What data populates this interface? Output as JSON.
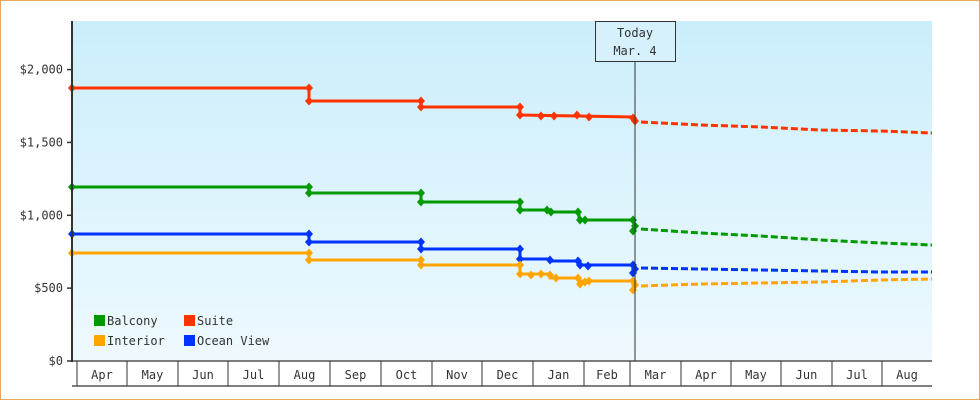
{
  "chart_data": {
    "type": "line",
    "title": "",
    "xlabel": "",
    "ylabel": "",
    "ylim": [
      0,
      2300
    ],
    "y_ticks": [
      {
        "value": 0,
        "label": "$0"
      },
      {
        "value": 500,
        "label": "$500"
      },
      {
        "value": 1000,
        "label": "$1,000"
      },
      {
        "value": 1500,
        "label": "$1,500"
      },
      {
        "value": 2000,
        "label": "$2,000"
      }
    ],
    "x_months": [
      "Apr",
      "May",
      "Jun",
      "Jul",
      "Aug",
      "Sep",
      "Oct",
      "Nov",
      "Dec",
      "Jan",
      "Feb",
      "Mar",
      "Apr",
      "May",
      "Jun",
      "Jul",
      "Aug"
    ],
    "today_marker": {
      "line1": "Today",
      "line2": "Mar. 4"
    },
    "grid": false,
    "legend_position": "bottom-left inside plot",
    "legend": [
      {
        "name": "Balcony",
        "color": "#009900"
      },
      {
        "name": "Suite",
        "color": "#ff3300"
      },
      {
        "name": "Interior",
        "color": "#ffa500"
      },
      {
        "name": "Ocean View",
        "color": "#0033ff"
      }
    ],
    "series": [
      {
        "name": "Suite",
        "color": "#ff3300",
        "historical": [
          {
            "date": "Apr",
            "value": 1874
          },
          {
            "date": "Aug (late)",
            "value": 1784
          },
          {
            "date": "Oct (late)",
            "value": 1743
          },
          {
            "date": "Dec",
            "value": 1688
          },
          {
            "date": "Jan",
            "value": 1688
          },
          {
            "date": "Feb",
            "value": 1681
          },
          {
            "date": "Mar 4",
            "value": 1668
          }
        ],
        "projected": [
          {
            "date": "Mar",
            "value": 1640
          },
          {
            "date": "May",
            "value": 1620
          },
          {
            "date": "Jun",
            "value": 1606
          },
          {
            "date": "Jul",
            "value": 1592
          },
          {
            "date": "Aug",
            "value": 1565
          }
        ]
      },
      {
        "name": "Balcony",
        "color": "#009900",
        "historical": [
          {
            "date": "Apr",
            "value": 1194
          },
          {
            "date": "Aug (late)",
            "value": 1153
          },
          {
            "date": "Oct (late)",
            "value": 1091
          },
          {
            "date": "Dec",
            "value": 1036
          },
          {
            "date": "Jan",
            "value": 1023
          },
          {
            "date": "Feb",
            "value": 968
          },
          {
            "date": "Mar 4",
            "value": 906
          }
        ],
        "projected": [
          {
            "date": "Mar",
            "value": 915
          },
          {
            "date": "May",
            "value": 875
          },
          {
            "date": "Jun",
            "value": 851
          },
          {
            "date": "Jul",
            "value": 824
          },
          {
            "date": "Aug",
            "value": 796
          }
        ]
      },
      {
        "name": "Ocean View",
        "color": "#0033ff",
        "historical": [
          {
            "date": "Apr",
            "value": 872
          },
          {
            "date": "Aug (late)",
            "value": 817
          },
          {
            "date": "Oct (late)",
            "value": 769
          },
          {
            "date": "Dec",
            "value": 700
          },
          {
            "date": "Jan",
            "value": 686
          },
          {
            "date": "Feb",
            "value": 659
          },
          {
            "date": "Mar 4",
            "value": 624
          }
        ],
        "projected": [
          {
            "date": "Mar",
            "value": 645
          },
          {
            "date": "May",
            "value": 638
          },
          {
            "date": "Jun",
            "value": 631
          },
          {
            "date": "Jul",
            "value": 624
          },
          {
            "date": "Aug",
            "value": 618
          }
        ]
      },
      {
        "name": "Interior",
        "color": "#ffa500",
        "historical": [
          {
            "date": "Apr",
            "value": 741
          },
          {
            "date": "Aug (late)",
            "value": 693
          },
          {
            "date": "Oct (late)",
            "value": 659
          },
          {
            "date": "Dec",
            "value": 597
          },
          {
            "date": "Jan",
            "value": 570
          },
          {
            "date": "Feb",
            "value": 549
          },
          {
            "date": "Mar 4",
            "value": 522
          }
        ],
        "projected": [
          {
            "date": "Mar",
            "value": 536
          },
          {
            "date": "May",
            "value": 556
          },
          {
            "date": "Jun",
            "value": 563
          },
          {
            "date": "Jul",
            "value": 577
          },
          {
            "date": "Aug",
            "value": 584
          }
        ]
      }
    ]
  }
}
